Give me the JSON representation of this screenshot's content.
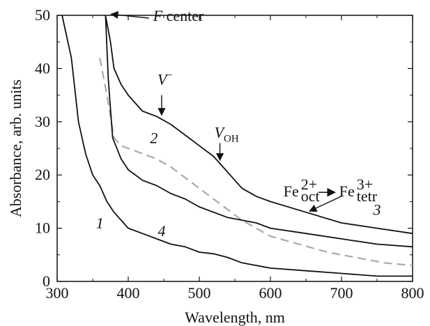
{
  "chart_data": {
    "type": "line",
    "title": "",
    "xlabel": "Wavelength, nm",
    "ylabel": "Absorbance, arb. units",
    "xlim": [
      300,
      800
    ],
    "ylim": [
      0,
      50
    ],
    "xticks": [
      300,
      400,
      500,
      600,
      700,
      800
    ],
    "yticks": [
      0,
      10,
      20,
      30,
      40,
      50
    ],
    "grid": false,
    "legend": "none",
    "series": [
      {
        "label": "1",
        "color": "#111111",
        "dash": "solid",
        "x": [
          307,
          320,
          330,
          340,
          350,
          360,
          370,
          380,
          390,
          400,
          420,
          440,
          460,
          480,
          500,
          520,
          540,
          560,
          600,
          650,
          700,
          750,
          800
        ],
        "y": [
          50,
          42,
          30,
          24,
          20,
          18,
          15,
          13,
          11.5,
          10,
          9,
          8,
          7,
          6.5,
          5.5,
          5.2,
          4.5,
          3.5,
          2.5,
          2,
          1.5,
          1,
          1
        ]
      },
      {
        "label": "2",
        "color": "#aaaaaa",
        "dash": "dashed",
        "x": [
          360,
          370,
          380,
          390,
          400,
          420,
          440,
          460,
          480,
          500,
          520,
          540,
          560,
          580,
          600,
          640,
          680,
          720,
          760,
          800
        ],
        "y": [
          42,
          35,
          27,
          25.5,
          25,
          24,
          23,
          21.5,
          19.5,
          17.5,
          15.5,
          13.5,
          11.5,
          10,
          8.5,
          7,
          5.5,
          4.5,
          3.5,
          3
        ]
      },
      {
        "label": "3",
        "color": "#111111",
        "dash": "solid",
        "x": [
          368,
          375,
          380,
          390,
          400,
          420,
          440,
          460,
          480,
          500,
          520,
          530,
          540,
          560,
          580,
          600,
          650,
          700,
          750,
          800
        ],
        "y": [
          50,
          45,
          40,
          37,
          35,
          32,
          31,
          29.5,
          27.5,
          25.5,
          23.5,
          22,
          20.5,
          17.5,
          16,
          15,
          13,
          11,
          10,
          9
        ]
      },
      {
        "label": "4",
        "color": "#111111",
        "dash": "solid",
        "x": [
          368,
          372,
          378,
          390,
          400,
          420,
          440,
          460,
          480,
          500,
          540,
          580,
          600,
          650,
          700,
          750,
          800
        ],
        "y": [
          50,
          38,
          27,
          23,
          21,
          19,
          18,
          16.5,
          15.5,
          14,
          12,
          11,
          10,
          9,
          8,
          7,
          6.5
        ]
      }
    ],
    "curve_labels": [
      {
        "text": "1",
        "x": 360,
        "y": 10
      },
      {
        "text": "2",
        "x": 436,
        "y": 26
      },
      {
        "text": "3",
        "x": 750,
        "y": 12.5
      },
      {
        "text": "4",
        "x": 447,
        "y": 8.5
      }
    ],
    "annotations": {
      "f_center": {
        "italic": "F",
        "rest": " center",
        "text_x": 435,
        "text_y": 50,
        "point_x": 372,
        "point_y": 51
      },
      "v_minus": {
        "base": "V",
        "sup": "−",
        "x": 447,
        "text_y": 37,
        "arrow_from_y": 35,
        "arrow_to_y": 31
      },
      "v_oh": {
        "base": "V",
        "sub": "OH",
        "x": 529,
        "text_y": 27,
        "arrow_from_y": 26,
        "arrow_to_y": 22.5
      },
      "fe": {
        "left_base": "Fe",
        "left_sup": "2+",
        "left_sub": "oct",
        "right_base": "Fe",
        "right_sup": "3+",
        "right_sub": "tetr",
        "text_x": 640,
        "text_y": 17,
        "arrow_from_x": 700,
        "arrow_from_y": 16,
        "arrow_to_x": 655,
        "arrow_to_y": 13.2
      }
    }
  }
}
